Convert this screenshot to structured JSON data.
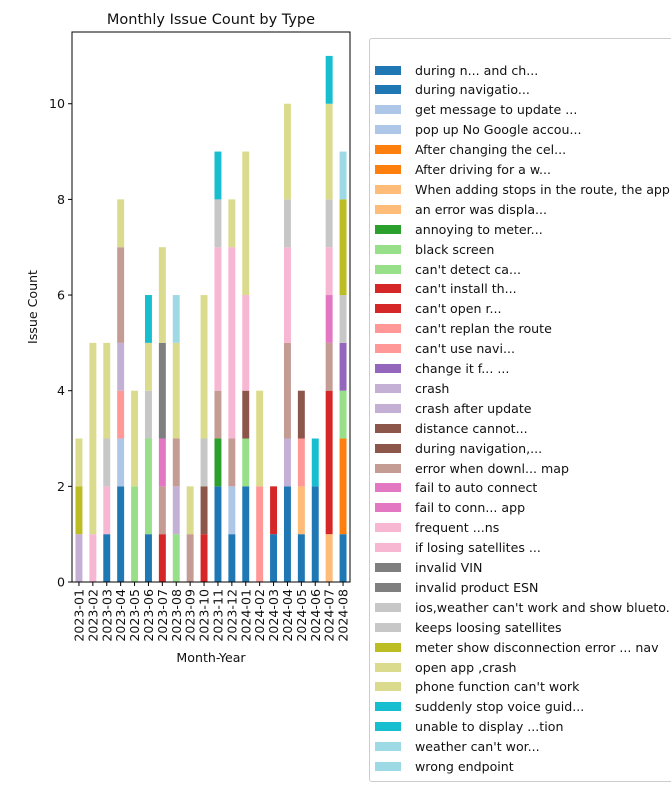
{
  "chart_data": {
    "type": "bar",
    "stacked": true,
    "title": "Monthly Issue Count by Type",
    "xlabel": "Month-Year",
    "ylabel": "Issue Count",
    "ylim": [
      0,
      11.5
    ],
    "yticks": [
      0,
      2,
      4,
      6,
      8,
      10
    ],
    "grid": false,
    "legend_position": "right",
    "categories": [
      "2023-01",
      "2023-02",
      "2023-03",
      "2023-04",
      "2023-05",
      "2023-06",
      "2023-07",
      "2023-08",
      "2023-09",
      "2023-10",
      "2023-11",
      "2023-12",
      "2024-01",
      "2024-02",
      "2024-03",
      "2024-04",
      "2024-05",
      "2024-06",
      "2024-07",
      "2024-08"
    ],
    "series": [
      {
        "name": "during n... and ch...",
        "color": "#1f77b4",
        "values": [
          0,
          0,
          1,
          2,
          0,
          1,
          0,
          0,
          0,
          0,
          2,
          1,
          2,
          0,
          1,
          2,
          1,
          2,
          0,
          1
        ]
      },
      {
        "name": "during navigatio...",
        "color": "#1f77b4",
        "values": [
          0,
          0,
          0,
          0,
          0,
          0,
          0,
          0,
          0,
          0,
          0,
          0,
          0,
          0,
          0,
          0,
          0,
          0,
          0,
          0
        ]
      },
      {
        "name": "get message to update ...",
        "color": "#aec7e8",
        "values": [
          0,
          0,
          0,
          1,
          0,
          0,
          0,
          0,
          0,
          0,
          0,
          1,
          0,
          0,
          0,
          0,
          0,
          0,
          0,
          0
        ]
      },
      {
        "name": "pop up No Google accou...",
        "color": "#aec7e8",
        "values": [
          0,
          0,
          0,
          0,
          0,
          0,
          0,
          0,
          0,
          0,
          0,
          0,
          0,
          0,
          0,
          0,
          0,
          0,
          0,
          0
        ]
      },
      {
        "name": "After changing the cel...",
        "color": "#ff7f0e",
        "values": [
          0,
          0,
          0,
          0,
          0,
          0,
          0,
          0,
          0,
          0,
          0,
          0,
          0,
          0,
          0,
          0,
          0,
          0,
          0,
          2
        ]
      },
      {
        "name": "After driving for a w...",
        "color": "#ff7f0e",
        "values": [
          0,
          0,
          0,
          0,
          0,
          0,
          0,
          0,
          0,
          0,
          0,
          0,
          0,
          0,
          0,
          0,
          0,
          0,
          0,
          0
        ]
      },
      {
        "name": "When adding stops in the route, the app...",
        "color": "#ffbb78",
        "values": [
          0,
          0,
          0,
          0,
          0,
          0,
          0,
          0,
          0,
          0,
          0,
          0,
          0,
          0,
          0,
          0,
          1,
          0,
          1,
          0
        ]
      },
      {
        "name": "an error was displa...",
        "color": "#ffbb78",
        "values": [
          0,
          0,
          0,
          0,
          0,
          0,
          0,
          0,
          0,
          0,
          0,
          0,
          0,
          0,
          0,
          0,
          0,
          0,
          0,
          0
        ]
      },
      {
        "name": "annoying to meter...",
        "color": "#2ca02c",
        "values": [
          0,
          0,
          0,
          0,
          0,
          0,
          0,
          0,
          0,
          0,
          1,
          0,
          0,
          0,
          0,
          0,
          0,
          0,
          0,
          0
        ]
      },
      {
        "name": "black screen",
        "color": "#98df8a",
        "values": [
          0,
          0,
          0,
          0,
          2,
          2,
          0,
          1,
          0,
          0,
          0,
          0,
          1,
          0,
          0,
          0,
          0,
          0,
          0,
          1
        ]
      },
      {
        "name": "can't detect ca...",
        "color": "#98df8a",
        "values": [
          0,
          0,
          0,
          0,
          0,
          0,
          0,
          0,
          0,
          0,
          0,
          0,
          0,
          0,
          0,
          0,
          0,
          0,
          0,
          0
        ]
      },
      {
        "name": "can't install th...",
        "color": "#d62728",
        "values": [
          0,
          0,
          0,
          0,
          0,
          0,
          1,
          0,
          0,
          1,
          0,
          0,
          0,
          0,
          1,
          0,
          0,
          0,
          3,
          0
        ]
      },
      {
        "name": "can't open r...",
        "color": "#d62728",
        "values": [
          0,
          0,
          0,
          0,
          0,
          0,
          0,
          0,
          0,
          0,
          0,
          0,
          0,
          0,
          0,
          0,
          0,
          0,
          0,
          0
        ]
      },
      {
        "name": "can't replan the route",
        "color": "#ff9896",
        "values": [
          0,
          0,
          0,
          1,
          0,
          0,
          0,
          0,
          0,
          0,
          0,
          0,
          0,
          2,
          0,
          0,
          1,
          0,
          0,
          0
        ]
      },
      {
        "name": "can't use navi...",
        "color": "#ff9896",
        "values": [
          0,
          0,
          0,
          0,
          0,
          0,
          0,
          0,
          0,
          0,
          0,
          0,
          0,
          0,
          0,
          0,
          0,
          0,
          0,
          0
        ]
      },
      {
        "name": "change it f... ...",
        "color": "#9467bd",
        "values": [
          0,
          0,
          0,
          0,
          0,
          0,
          0,
          0,
          0,
          0,
          0,
          0,
          0,
          0,
          0,
          0,
          0,
          0,
          0,
          1
        ]
      },
      {
        "name": "crash",
        "color": "#c5b0d5",
        "values": [
          1,
          0,
          0,
          1,
          0,
          0,
          0,
          1,
          0,
          0,
          0,
          0,
          0,
          0,
          0,
          1,
          0,
          0,
          0,
          0
        ]
      },
      {
        "name": "crash after update",
        "color": "#c5b0d5",
        "values": [
          0,
          0,
          0,
          0,
          0,
          0,
          0,
          0,
          0,
          0,
          0,
          0,
          0,
          0,
          0,
          0,
          0,
          0,
          0,
          0
        ]
      },
      {
        "name": "distance cannot...",
        "color": "#8c564b",
        "values": [
          0,
          0,
          0,
          0,
          0,
          0,
          0,
          0,
          0,
          1,
          0,
          0,
          1,
          0,
          0,
          0,
          1,
          0,
          0,
          0
        ]
      },
      {
        "name": "during navigation,...",
        "color": "#8c564b",
        "values": [
          0,
          0,
          0,
          0,
          0,
          0,
          0,
          0,
          0,
          0,
          0,
          0,
          0,
          0,
          0,
          0,
          0,
          0,
          0,
          0
        ]
      },
      {
        "name": "error when downl... map",
        "color": "#c49c94",
        "values": [
          0,
          0,
          0,
          2,
          0,
          0,
          1,
          1,
          1,
          0,
          1,
          1,
          0,
          0,
          0,
          2,
          0,
          0,
          1,
          0
        ]
      },
      {
        "name": "fail to auto connect",
        "color": "#e377c2",
        "values": [
          0,
          0,
          0,
          0,
          0,
          0,
          1,
          0,
          0,
          0,
          0,
          0,
          0,
          0,
          0,
          0,
          0,
          0,
          1,
          0
        ]
      },
      {
        "name": "fail to conn... app",
        "color": "#e377c2",
        "values": [
          0,
          0,
          0,
          0,
          0,
          0,
          0,
          0,
          0,
          0,
          0,
          0,
          0,
          0,
          0,
          0,
          0,
          0,
          0,
          0
        ]
      },
      {
        "name": "frequent ...ns",
        "color": "#f7b6d2",
        "values": [
          0,
          1,
          1,
          0,
          0,
          0,
          0,
          0,
          0,
          0,
          3,
          4,
          2,
          0,
          0,
          2,
          0,
          0,
          1,
          0
        ]
      },
      {
        "name": "if losing satellites ...",
        "color": "#f7b6d2",
        "values": [
          0,
          0,
          0,
          0,
          0,
          0,
          0,
          0,
          0,
          0,
          0,
          0,
          0,
          0,
          0,
          0,
          0,
          0,
          0,
          0
        ]
      },
      {
        "name": "invalid VIN",
        "color": "#7f7f7f",
        "values": [
          0,
          0,
          0,
          0,
          0,
          0,
          2,
          0,
          0,
          0,
          0,
          0,
          0,
          0,
          0,
          0,
          0,
          0,
          0,
          0
        ]
      },
      {
        "name": "invalid product ESN",
        "color": "#7f7f7f",
        "values": [
          0,
          0,
          0,
          0,
          0,
          0,
          0,
          0,
          0,
          0,
          0,
          0,
          0,
          0,
          0,
          0,
          0,
          0,
          0,
          0
        ]
      },
      {
        "name": "ios,weather can't work and show blueto...",
        "color": "#c7c7c7",
        "values": [
          0,
          0,
          1,
          0,
          0,
          1,
          0,
          0,
          0,
          1,
          1,
          0,
          0,
          0,
          0,
          1,
          0,
          0,
          1,
          1
        ]
      },
      {
        "name": "keeps loosing satellites",
        "color": "#c7c7c7",
        "values": [
          0,
          0,
          0,
          0,
          0,
          0,
          0,
          0,
          0,
          0,
          0,
          0,
          0,
          0,
          0,
          0,
          0,
          0,
          0,
          0
        ]
      },
      {
        "name": "meter show disconnection error ... nav",
        "color": "#bcbd22",
        "values": [
          1,
          0,
          0,
          0,
          0,
          0,
          0,
          0,
          0,
          0,
          0,
          0,
          0,
          0,
          0,
          0,
          0,
          0,
          0,
          2
        ]
      },
      {
        "name": "open app ,crash",
        "color": "#dbdb8d",
        "values": [
          1,
          4,
          2,
          1,
          2,
          1,
          2,
          2,
          1,
          3,
          0,
          1,
          3,
          2,
          0,
          2,
          0,
          0,
          2,
          0
        ]
      },
      {
        "name": "phone function can't work",
        "color": "#dbdb8d",
        "values": [
          0,
          0,
          0,
          0,
          0,
          0,
          0,
          0,
          0,
          0,
          0,
          0,
          0,
          0,
          0,
          0,
          0,
          0,
          0,
          0
        ]
      },
      {
        "name": "suddenly stop voice guid...",
        "color": "#17becf",
        "values": [
          0,
          0,
          0,
          0,
          0,
          1,
          0,
          0,
          0,
          0,
          1,
          0,
          0,
          0,
          0,
          0,
          0,
          1,
          1,
          0
        ]
      },
      {
        "name": "unable to display ...tion",
        "color": "#17becf",
        "values": [
          0,
          0,
          0,
          0,
          0,
          0,
          0,
          0,
          0,
          0,
          0,
          0,
          0,
          0,
          0,
          0,
          0,
          0,
          0,
          0
        ]
      },
      {
        "name": "weather can't wor...",
        "color": "#9edae5",
        "values": [
          0,
          0,
          0,
          0,
          0,
          0,
          0,
          1,
          0,
          0,
          0,
          0,
          0,
          0,
          0,
          0,
          0,
          0,
          0,
          1
        ]
      },
      {
        "name": "wrong endpoint",
        "color": "#9edae5",
        "values": [
          0,
          0,
          0,
          0,
          0,
          0,
          0,
          0,
          0,
          0,
          0,
          0,
          0,
          0,
          0,
          0,
          0,
          0,
          0,
          0
        ]
      }
    ]
  }
}
